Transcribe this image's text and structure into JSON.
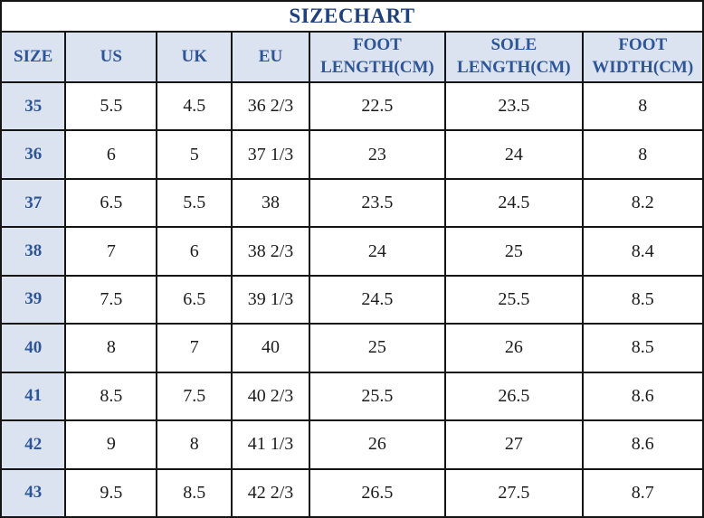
{
  "page": {
    "title": "SIZECHART"
  },
  "chart_data": {
    "type": "table",
    "title": "SIZECHART",
    "columns": [
      "SIZE",
      "US",
      "UK",
      "EU",
      "FOOT LENGTH(CM)",
      "SOLE LENGTH(CM)",
      "FOOT WIDTH(CM)"
    ],
    "rows": [
      [
        "35",
        "5.5",
        "4.5",
        "36 2/3",
        "22.5",
        "23.5",
        "8"
      ],
      [
        "36",
        "6",
        "5",
        "37 1/3",
        "23",
        "24",
        "8"
      ],
      [
        "37",
        "6.5",
        "5.5",
        "38",
        "23.5",
        "24.5",
        "8.2"
      ],
      [
        "38",
        "7",
        "6",
        "38 2/3",
        "24",
        "25",
        "8.4"
      ],
      [
        "39",
        "7.5",
        "6.5",
        "39 1/3",
        "24.5",
        "25.5",
        "8.5"
      ],
      [
        "40",
        "8",
        "7",
        "40",
        "25",
        "26",
        "8.5"
      ],
      [
        "41",
        "8.5",
        "7.5",
        "40 2/3",
        "25.5",
        "26.5",
        "8.6"
      ],
      [
        "42",
        "9",
        "8",
        "41 1/3",
        "26",
        "27",
        "8.6"
      ],
      [
        "43",
        "9.5",
        "8.5",
        "42 2/3",
        "26.5",
        "27.5",
        "8.7"
      ]
    ],
    "colors": {
      "header_bg": "#dbe3f1",
      "header_text": "#2e5596",
      "title_text": "#20407c",
      "body_text": "#1c1c1c",
      "grid": "#141414"
    }
  }
}
